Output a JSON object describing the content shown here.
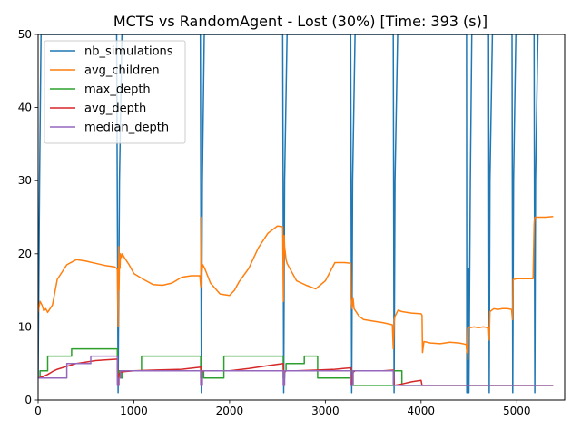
{
  "chart_data": {
    "type": "line",
    "title": "MCTS vs RandomAgent - Lost (30%) [Time: 393 (s)]",
    "xlabel": "",
    "ylabel": "",
    "xlim": [
      0,
      5500
    ],
    "ylim": [
      0,
      50
    ],
    "xticks": [
      0,
      1000,
      2000,
      3000,
      4000,
      5000
    ],
    "yticks": [
      0,
      10,
      20,
      30,
      40,
      50
    ],
    "grid": false,
    "legend_position": "top-left",
    "series": [
      {
        "name": "nb_simulations",
        "color": "#1f77b4",
        "x": [
          0,
          15,
          30,
          820,
          835,
          850,
          875,
          1695,
          1705,
          1715,
          1735,
          2555,
          2565,
          2575,
          2600,
          3265,
          3275,
          3285,
          3310,
          3710,
          3718,
          3728,
          3755,
          4475,
          4478,
          4482,
          4485,
          4495,
          4500,
          4515,
          4530,
          4705,
          4712,
          4720,
          4745,
          4950,
          4958,
          4966,
          4990,
          5180,
          5188,
          5196,
          5220
        ],
        "y": [
          3,
          30,
          50,
          50,
          1,
          30,
          50,
          50,
          1,
          30,
          50,
          50,
          1,
          30,
          50,
          50,
          1,
          30,
          50,
          50,
          1,
          30,
          50,
          50,
          1,
          18,
          1,
          18,
          1,
          30,
          50,
          50,
          1,
          30,
          50,
          50,
          1,
          30,
          50,
          50,
          1,
          30,
          50
        ]
      },
      {
        "name": "avg_children",
        "color": "#ff7f0e",
        "x": [
          0,
          20,
          40,
          60,
          80,
          100,
          150,
          200,
          300,
          400,
          500,
          600,
          700,
          800,
          820,
          828,
          835,
          840,
          845,
          850,
          855,
          860,
          870,
          880,
          900,
          950,
          1000,
          1100,
          1200,
          1300,
          1400,
          1500,
          1600,
          1690,
          1698,
          1705,
          1710,
          1720,
          1740,
          1800,
          1900,
          2000,
          2050,
          2100,
          2200,
          2300,
          2400,
          2500,
          2555,
          2562,
          2570,
          2575,
          2590,
          2600,
          2620,
          2700,
          2800,
          2900,
          3000,
          3100,
          3200,
          3265,
          3270,
          3280,
          3290,
          3300,
          3350,
          3400,
          3500,
          3600,
          3700,
          3710,
          3720,
          3730,
          3760,
          3800,
          3900,
          4000,
          4010,
          4015,
          4030,
          4100,
          4200,
          4300,
          4400,
          4470,
          4480,
          4485,
          4490,
          4495,
          4500,
          4520,
          4550,
          4600,
          4650,
          4700,
          4705,
          4712,
          4720,
          4760,
          4800,
          4850,
          4900,
          4945,
          4955,
          4962,
          4970,
          5000,
          5100,
          5170,
          5180,
          5185,
          5190,
          5200,
          5300,
          5380
        ],
        "y": [
          12,
          13.5,
          13,
          12.2,
          12.5,
          12,
          13,
          16.5,
          18.5,
          19.2,
          19,
          18.7,
          18.4,
          18.2,
          18,
          17.8,
          10,
          21,
          15,
          19,
          18,
          20,
          19.5,
          20,
          19.5,
          18.5,
          17.3,
          16.5,
          15.8,
          15.7,
          16,
          16.8,
          17,
          17,
          15.5,
          25,
          17.5,
          18.5,
          18,
          16,
          14.5,
          14.3,
          15,
          16.2,
          18,
          20.8,
          22.8,
          23.8,
          23.7,
          13.5,
          22.5,
          21,
          19.2,
          18.7,
          18.2,
          16.3,
          15.7,
          15.2,
          16.3,
          18.8,
          18.8,
          18.7,
          14,
          12.5,
          14,
          12.5,
          11.5,
          11,
          10.8,
          10.6,
          10.3,
          7,
          11,
          11.5,
          12.3,
          12.1,
          11.9,
          11.8,
          11.6,
          6.5,
          8,
          7.8,
          7.7,
          7.9,
          7.8,
          7.6,
          6.5,
          9.8,
          5.5,
          9.8,
          10,
          9.9,
          10,
          9.9,
          10,
          9.9,
          9.9,
          8.2,
          12.1,
          12.5,
          12.4,
          12.5,
          12.5,
          12.4,
          11,
          16.5,
          16.5,
          16.6,
          16.6,
          16.6,
          24,
          24.8,
          25,
          25,
          25,
          25.1
        ]
      },
      {
        "name": "max_depth",
        "color": "#2ca02c",
        "x": [
          0,
          20,
          20,
          100,
          100,
          350,
          350,
          828,
          828,
          845,
          845,
          865,
          865,
          880,
          880,
          1080,
          1080,
          1698,
          1698,
          1715,
          1715,
          1730,
          1730,
          1940,
          1940,
          2560,
          2560,
          2575,
          2575,
          2590,
          2590,
          2780,
          2780,
          2920,
          2920,
          3268,
          3268,
          3290,
          3290,
          3712,
          3712,
          3800,
          3800,
          4000,
          4000,
          4478,
          4478,
          4705,
          4705,
          4950,
          4950,
          5180,
          5180,
          5380
        ],
        "y": [
          3,
          3,
          4,
          4,
          6,
          6,
          7,
          7,
          3,
          3,
          4,
          4,
          3,
          3,
          4,
          4,
          6,
          6,
          3,
          3,
          4,
          4,
          3,
          3,
          6,
          6,
          3,
          3,
          4,
          4,
          5,
          5,
          6,
          6,
          3,
          3,
          4,
          4,
          2,
          2,
          4,
          4,
          2,
          2,
          2,
          2,
          2,
          2,
          2,
          2,
          2,
          2,
          2,
          2
        ]
      },
      {
        "name": "avg_depth",
        "color": "#d62728",
        "x": [
          0,
          50,
          100,
          150,
          200,
          300,
          400,
          500,
          600,
          700,
          828,
          835,
          845,
          860,
          900,
          1000,
          1200,
          1500,
          1698,
          1705,
          1715,
          1730,
          1800,
          2000,
          2200,
          2400,
          2560,
          2568,
          2575,
          2590,
          2700,
          2900,
          3100,
          3268,
          3275,
          3290,
          3310,
          3400,
          3600,
          3712,
          3720,
          3800,
          3900,
          4000,
          4010,
          4478,
          4705,
          4950,
          5180,
          5380
        ],
        "y": [
          3,
          3.2,
          3.5,
          3.9,
          4.2,
          4.6,
          5,
          5.2,
          5.4,
          5.5,
          5.6,
          2.2,
          3.5,
          3.8,
          3.9,
          4,
          4.1,
          4.2,
          4.5,
          2,
          3.8,
          4,
          4,
          4,
          4.3,
          4.7,
          5,
          2,
          3.8,
          4,
          4,
          4.1,
          4.2,
          4.4,
          2.2,
          3.8,
          4,
          4,
          4,
          4.1,
          2,
          2.2,
          2.5,
          2.7,
          2,
          2,
          2,
          2,
          2,
          2
        ]
      },
      {
        "name": "median_depth",
        "color": "#9467bd",
        "x": [
          0,
          300,
          300,
          550,
          550,
          828,
          828,
          845,
          845,
          860,
          860,
          1698,
          1698,
          1715,
          1715,
          2560,
          2560,
          2575,
          2575,
          3268,
          3268,
          3290,
          3290,
          3712,
          3712,
          4478,
          4478,
          4705,
          4705,
          4950,
          4950,
          5180,
          5180,
          5380
        ],
        "y": [
          3,
          3,
          5,
          5,
          6,
          6,
          2,
          2,
          3,
          3,
          4,
          4,
          2,
          2,
          4,
          4,
          2,
          2,
          4,
          4,
          2,
          2,
          4,
          4,
          2,
          2,
          2,
          2,
          2,
          2,
          2,
          2,
          2,
          2
        ]
      }
    ]
  }
}
